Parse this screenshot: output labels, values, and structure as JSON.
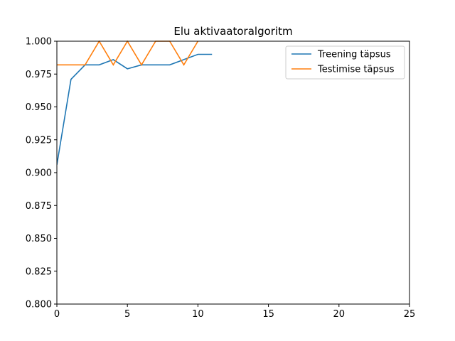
{
  "chart_data": {
    "type": "line",
    "title": "Elu aktivaatoralgoritm",
    "xlabel": "",
    "ylabel": "",
    "xlim": [
      0,
      25
    ],
    "ylim": [
      0.8,
      1.0
    ],
    "xticks": [
      "0",
      "5",
      "10",
      "15",
      "20",
      "25"
    ],
    "yticks": [
      "0.800",
      "0.825",
      "0.850",
      "0.875",
      "0.900",
      "0.925",
      "0.950",
      "0.975",
      "1.000"
    ],
    "grid": false,
    "legend_position": "top-right",
    "series": [
      {
        "name": "Treening täpsus",
        "color": "#1f77b4",
        "x": [
          0,
          1,
          2,
          3,
          4,
          5,
          6,
          7,
          8,
          9,
          10,
          11
        ],
        "y": [
          0.906,
          0.971,
          0.982,
          0.982,
          0.986,
          0.979,
          0.982,
          0.982,
          0.982,
          0.986,
          0.99,
          0.99
        ]
      },
      {
        "name": "Testimise täpsus",
        "color": "#ff7f0e",
        "x": [
          0,
          1,
          2,
          3,
          4,
          5,
          6,
          7,
          8,
          9,
          10
        ],
        "y": [
          0.982,
          0.982,
          0.982,
          1.0,
          0.982,
          1.0,
          0.982,
          1.0,
          1.0,
          0.982,
          1.0
        ]
      }
    ]
  }
}
